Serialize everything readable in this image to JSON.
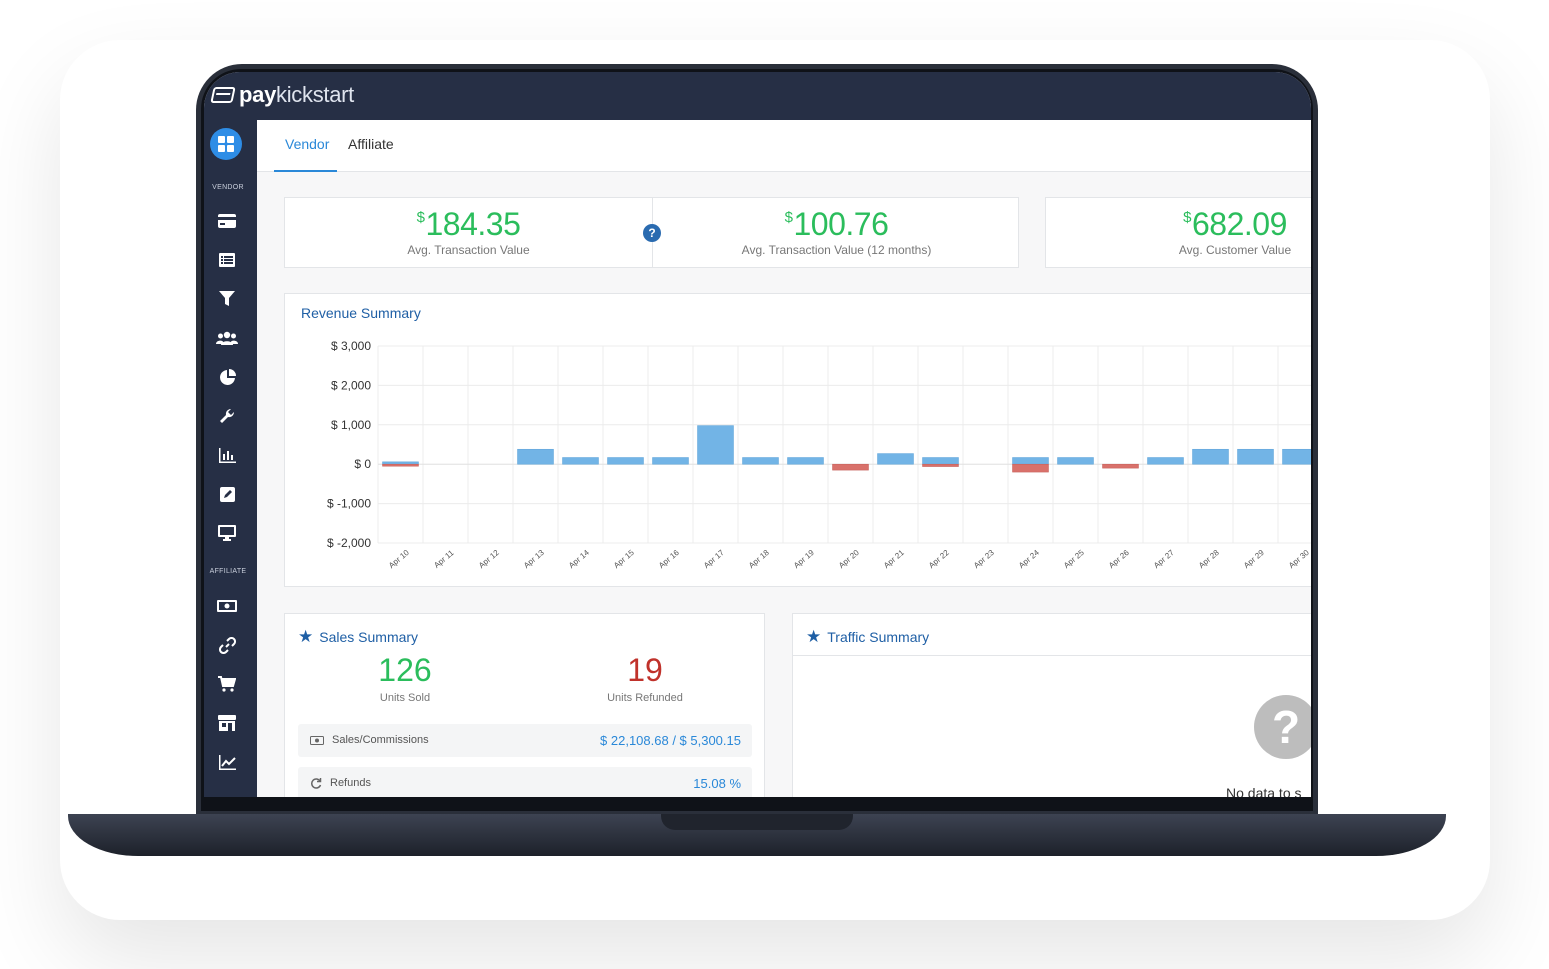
{
  "app": {
    "logo_part1": "pay",
    "logo_part2": "kickstart"
  },
  "sidebar": {
    "vendor_label": "VENDOR",
    "affiliate_label": "AFFILIATE",
    "vendor_items": [
      "credit-card-icon",
      "list-icon",
      "funnel-icon",
      "users-icon",
      "pie-chart-icon",
      "wrench-icon",
      "bar-chart-icon",
      "edit-icon",
      "monitor-icon"
    ],
    "affiliate_items": [
      "money-icon",
      "link-icon",
      "cart-icon",
      "store-icon",
      "line-chart-icon"
    ]
  },
  "tabs": [
    {
      "label": "Vendor",
      "active": true
    },
    {
      "label": "Affiliate",
      "active": false
    }
  ],
  "stats": [
    {
      "currency": "$",
      "value": "184.35",
      "label": "Avg. Transaction Value"
    },
    {
      "currency": "$",
      "value": "100.76",
      "label": "Avg. Transaction Value (12 months)"
    },
    {
      "currency": "$",
      "value": "682.09",
      "label": "Avg. Customer Value"
    }
  ],
  "help_symbol": "?",
  "revenue": {
    "title": "Revenue Summary"
  },
  "chart_data": {
    "type": "bar",
    "title": "Revenue Summary",
    "categories": [
      "Apr 10",
      "Apr 11",
      "Apr 12",
      "Apr 13",
      "Apr 14",
      "Apr 15",
      "Apr 16",
      "Apr 17",
      "Apr 18",
      "Apr 19",
      "Apr 20",
      "Apr 21",
      "Apr 22",
      "Apr 23",
      "Apr 24",
      "Apr 25",
      "Apr 26",
      "Apr 27",
      "Apr 28",
      "Apr 29",
      "Apr 30"
    ],
    "y_tick_labels": [
      "$ 3,000",
      "$ 2,000",
      "$ 1,000",
      "$ 0",
      "$ -1,000",
      "$ -2,000"
    ],
    "y_ticks": [
      3000,
      2000,
      1000,
      0,
      -1000,
      -2000
    ],
    "ylim": [
      -2000,
      3000
    ],
    "series": [
      {
        "color": "#72b4e6",
        "values": [
          60,
          0,
          0,
          380,
          170,
          170,
          170,
          980,
          170,
          170,
          0,
          270,
          170,
          0,
          170,
          170,
          0,
          170,
          380,
          380,
          380
        ]
      },
      {
        "color": "#d9716b",
        "values": [
          -40,
          0,
          0,
          0,
          0,
          0,
          0,
          0,
          0,
          0,
          -150,
          0,
          -60,
          0,
          -200,
          0,
          -100,
          0,
          0,
          0,
          0
        ]
      }
    ],
    "grid": true
  },
  "sales": {
    "title": "Sales Summary",
    "units_sold": "126",
    "units_sold_label": "Units Sold",
    "units_refunded": "19",
    "units_refunded_label": "Units Refunded",
    "rows": [
      {
        "icon": "money-icon",
        "label": "Sales/Commissions",
        "value": "$ 22,108.68 / $ 5,300.15"
      },
      {
        "icon": "refresh-icon",
        "label": "Refunds",
        "value": "15.08 %"
      }
    ]
  },
  "traffic": {
    "title": "Traffic Summary",
    "no_data_symbol": "?",
    "no_data_text": "No data to s"
  },
  "colors": {
    "accent": "#2a88d8",
    "green": "#2bbd5c",
    "red": "#c0322b",
    "nav": "#262f45"
  }
}
